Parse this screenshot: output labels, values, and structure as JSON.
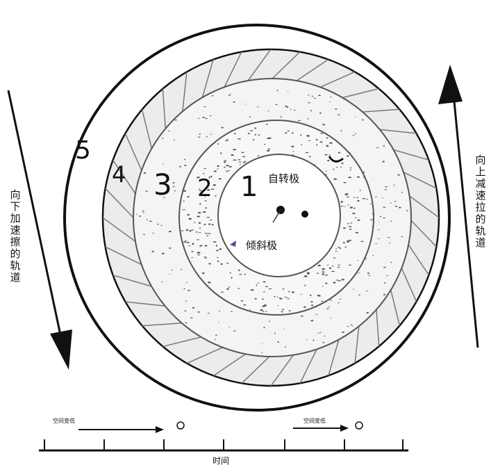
{
  "zones": [
    {
      "number": "1"
    },
    {
      "number": "2"
    },
    {
      "number": "3"
    },
    {
      "number": "4"
    },
    {
      "number": "5"
    }
  ],
  "pole_labels": {
    "rotation": "自转极",
    "tilt": "倾斜极"
  },
  "left_arrow": {
    "text": "向下加速擦的轨道"
  },
  "right_arrow": {
    "text": "向上减速拉的轨道"
  },
  "timeline": {
    "label": "时间",
    "annotations": [
      {
        "text": "空间变低"
      },
      {
        "text": "空间变低"
      }
    ]
  },
  "colors": {
    "line": "#111111",
    "texture": "#555555",
    "background": "#ffffff",
    "tilt_marker": "#4a4aa8"
  }
}
